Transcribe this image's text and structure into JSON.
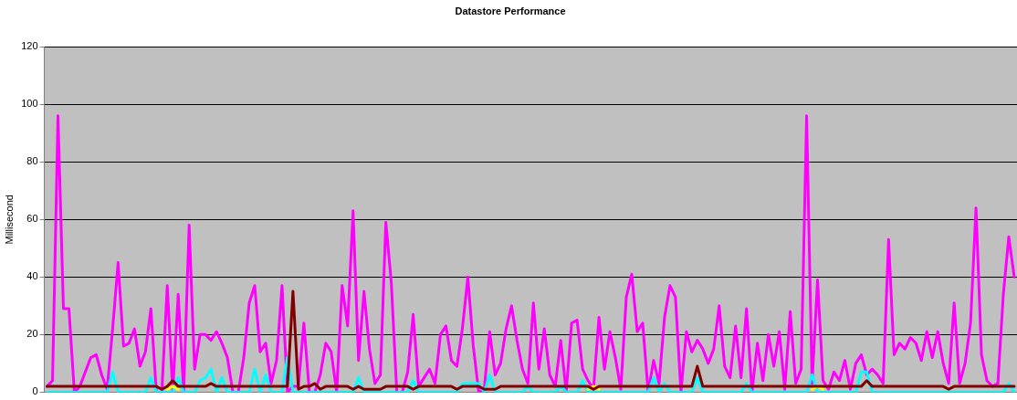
{
  "chart_data": {
    "type": "line",
    "title": "Datastore Performance",
    "ylabel": "Millisecond",
    "categories": [
      null,
      null,
      null,
      null,
      null,
      null,
      null,
      null,
      null,
      null,
      null,
      null,
      null,
      null,
      null,
      null,
      null,
      null,
      null,
      null,
      null,
      null,
      null,
      null,
      null,
      null,
      null,
      null,
      null,
      null,
      null,
      null,
      null,
      null,
      null,
      null,
      null,
      null,
      null,
      null,
      null,
      null,
      null,
      null,
      null,
      null,
      null,
      null,
      null,
      null,
      null,
      null,
      null,
      null,
      null,
      null,
      null,
      null,
      null,
      null,
      null,
      null,
      null,
      null,
      null,
      null,
      null,
      null,
      null,
      null,
      null,
      null,
      null,
      null,
      null,
      null,
      null,
      null,
      null,
      null,
      null,
      null,
      null,
      null,
      null,
      null,
      null,
      null,
      null,
      null,
      null,
      null,
      null,
      null,
      null,
      null,
      null,
      null,
      null,
      null,
      null,
      null,
      null,
      null,
      null,
      null,
      null,
      null,
      null,
      null,
      null,
      null,
      null,
      null,
      null,
      null,
      null,
      null,
      null,
      null,
      null,
      null,
      null,
      null,
      null,
      null,
      null,
      null,
      null,
      null,
      null,
      null,
      null,
      null,
      null,
      null,
      null,
      null,
      null,
      null,
      null,
      null,
      null,
      null,
      null,
      null,
      null,
      null,
      null,
      null,
      null,
      null,
      null,
      null,
      null,
      null,
      null,
      null,
      null,
      null,
      null,
      null,
      null,
      null,
      null,
      null,
      null,
      null,
      null,
      null,
      null,
      null,
      null,
      null,
      null,
      null,
      null,
      null
    ],
    "series": [
      {
        "color": "#ff00ff",
        "values": [
          2,
          4,
          96,
          29,
          29,
          0,
          2,
          7,
          12,
          13,
          6,
          1,
          22,
          45,
          16,
          17,
          22,
          9,
          14,
          29,
          0,
          0,
          37,
          0,
          34,
          0,
          58,
          8,
          20,
          20,
          18,
          21,
          17,
          12,
          0,
          0,
          12,
          31,
          37,
          14,
          17,
          3,
          11,
          37,
          0,
          2,
          2,
          24,
          0,
          0,
          6,
          17,
          14,
          0,
          37,
          23,
          63,
          11,
          35,
          15,
          3,
          6,
          59,
          38,
          0,
          0,
          7,
          27,
          2,
          5,
          8,
          3,
          20,
          23,
          11,
          9,
          22,
          40,
          16,
          0,
          1,
          21,
          6,
          10,
          22,
          30,
          18,
          8,
          3,
          31,
          8,
          22,
          6,
          2,
          18,
          0,
          24,
          25,
          8,
          4,
          1,
          26,
          8,
          21,
          12,
          1,
          33,
          41,
          21,
          24,
          0,
          11,
          3,
          26,
          37,
          33,
          0,
          21,
          14,
          18,
          15,
          10,
          15,
          30,
          9,
          5,
          23,
          5,
          29,
          0,
          17,
          4,
          20,
          9,
          21,
          1,
          28,
          3,
          8,
          96,
          3,
          39,
          4,
          1,
          7,
          4,
          11,
          1,
          10,
          13,
          6,
          8,
          6,
          3,
          53,
          13,
          17,
          15,
          19,
          17,
          11,
          21,
          12,
          21,
          10,
          3,
          31,
          3,
          10,
          24,
          64,
          13,
          4,
          2,
          3,
          34,
          54,
          40
        ]
      },
      {
        "color": "#00ffff",
        "values": [
          0,
          0,
          0,
          0,
          0,
          0,
          0,
          0,
          0,
          0,
          0,
          0,
          7,
          0,
          0,
          0,
          0,
          0,
          0,
          5,
          0,
          0,
          0,
          0,
          5,
          0,
          0,
          0,
          4,
          5,
          8,
          0,
          5,
          0,
          0,
          0,
          0,
          0,
          8,
          0,
          6,
          0,
          0,
          0,
          12,
          0,
          0,
          0,
          0,
          0,
          0,
          0,
          0,
          0,
          0,
          0,
          0,
          5,
          0,
          0,
          0,
          0,
          0,
          0,
          0,
          0,
          0,
          4,
          0,
          0,
          0,
          0,
          0,
          0,
          0,
          0,
          3,
          3,
          3,
          3,
          0,
          6,
          0,
          0,
          0,
          0,
          0,
          0,
          2,
          0,
          0,
          0,
          0,
          0,
          2,
          0,
          0,
          0,
          4,
          0,
          0,
          0,
          0,
          0,
          0,
          0,
          0,
          0,
          0,
          0,
          0,
          5,
          0,
          3,
          0,
          0,
          0,
          0,
          0,
          5,
          0,
          0,
          0,
          0,
          0,
          0,
          0,
          0,
          3,
          0,
          0,
          0,
          0,
          0,
          0,
          0,
          0,
          0,
          0,
          0,
          6,
          0,
          0,
          0,
          0,
          0,
          0,
          0,
          0,
          7,
          7,
          0,
          0,
          0,
          0,
          0,
          0,
          0,
          0,
          0,
          0,
          0,
          0,
          0,
          0,
          0,
          0,
          0,
          0,
          0,
          0,
          0,
          0,
          0,
          0,
          0,
          3,
          0
        ]
      },
      {
        "color": "#ffff00",
        "values": [
          null,
          null,
          null,
          null,
          null,
          null,
          null,
          null,
          null,
          null,
          null,
          null,
          null,
          null,
          null,
          null,
          null,
          null,
          null,
          null,
          null,
          null,
          1,
          2,
          1,
          null,
          null,
          null,
          null,
          null,
          null,
          null,
          null,
          null,
          null,
          null,
          null,
          null,
          null,
          null,
          null,
          null,
          null,
          null,
          null,
          null,
          null,
          null,
          null,
          null,
          null,
          null,
          null,
          null,
          null,
          null,
          null,
          null,
          null,
          null,
          null,
          null,
          null,
          null,
          null,
          null,
          null,
          null,
          null,
          null,
          null,
          null,
          null,
          null,
          null,
          null,
          null,
          null,
          null,
          null,
          null,
          null,
          null,
          null,
          null,
          null,
          null,
          null,
          null,
          null,
          null,
          null,
          null,
          null,
          null,
          null,
          null,
          null,
          null,
          1,
          2,
          1,
          null,
          null,
          null,
          null,
          null,
          null,
          null,
          null,
          null,
          null,
          null,
          null,
          null,
          null,
          null,
          null,
          null,
          null,
          null,
          null,
          null,
          null,
          null,
          null,
          null,
          null,
          null,
          null,
          null,
          null,
          null,
          null,
          null,
          null,
          null,
          null,
          null,
          null,
          1,
          2,
          1,
          null,
          null,
          null,
          null,
          null,
          null,
          null,
          null,
          null,
          null,
          null,
          null,
          null,
          null,
          null,
          null,
          null,
          null,
          null,
          null,
          null,
          null,
          null,
          null,
          null,
          null,
          null,
          null,
          null,
          null,
          null,
          null,
          null,
          null,
          null
        ]
      },
      {
        "color": "#800000",
        "values": [
          2,
          2,
          2,
          2,
          2,
          2,
          2,
          2,
          2,
          2,
          2,
          2,
          2,
          2,
          2,
          2,
          2,
          2,
          2,
          2,
          2,
          1,
          2,
          4,
          2,
          2,
          2,
          2,
          2,
          2,
          3,
          2,
          2,
          2,
          2,
          2,
          2,
          2,
          2,
          2,
          2,
          2,
          2,
          2,
          2,
          35,
          1,
          2,
          2,
          3,
          1,
          2,
          2,
          2,
          2,
          2,
          1,
          2,
          1,
          1,
          1,
          1,
          2,
          2,
          2,
          2,
          2,
          1,
          2,
          2,
          2,
          2,
          2,
          2,
          2,
          1,
          2,
          2,
          2,
          2,
          1,
          1,
          1,
          2,
          2,
          2,
          2,
          2,
          2,
          2,
          2,
          2,
          2,
          2,
          2,
          2,
          2,
          2,
          2,
          2,
          1,
          2,
          2,
          2,
          2,
          2,
          2,
          2,
          2,
          2,
          2,
          2,
          2,
          2,
          2,
          2,
          2,
          2,
          2,
          9,
          2,
          2,
          2,
          2,
          2,
          2,
          2,
          2,
          2,
          2,
          2,
          2,
          2,
          2,
          2,
          2,
          2,
          2,
          2,
          2,
          2,
          2,
          2,
          2,
          2,
          2,
          2,
          2,
          2,
          2,
          4,
          2,
          2,
          2,
          2,
          2,
          2,
          2,
          2,
          2,
          2,
          2,
          2,
          2,
          2,
          1,
          2,
          2,
          2,
          2,
          2,
          2,
          2,
          2,
          2,
          2,
          2,
          2
        ]
      }
    ],
    "ylim": [
      0,
      120
    ],
    "yticks": [
      0,
      20,
      40,
      60,
      80,
      100,
      120
    ],
    "grid": "y",
    "legend": false,
    "marker": "none",
    "line_style": "solid"
  }
}
